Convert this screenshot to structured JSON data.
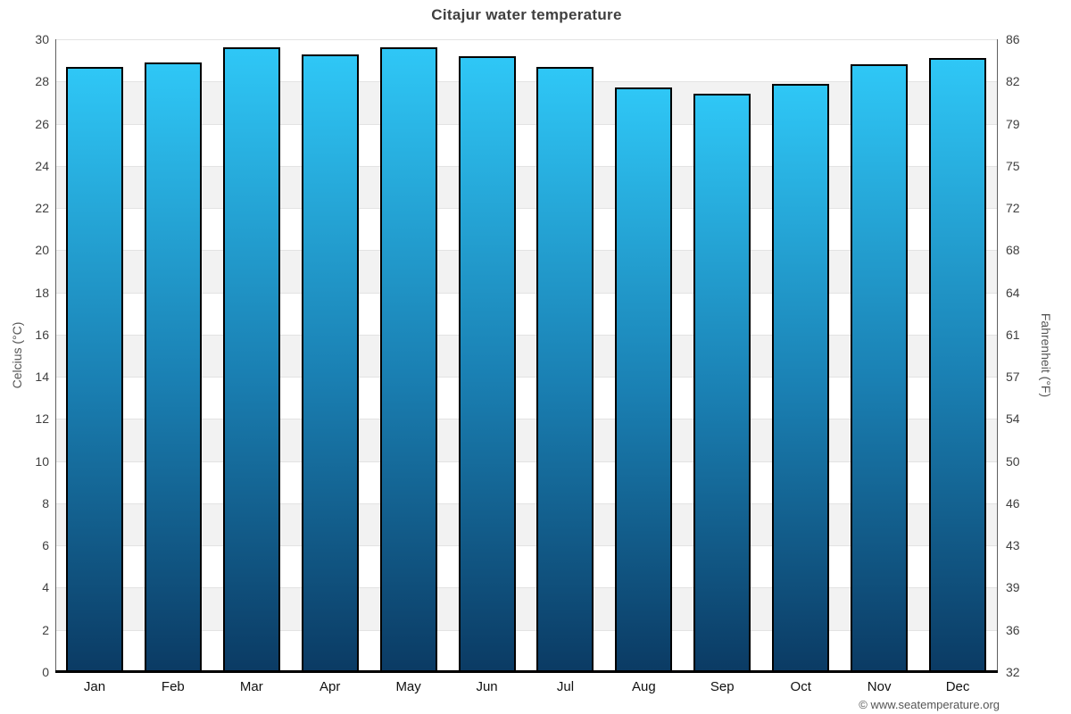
{
  "title": "Citajur water temperature",
  "footer": "© www.seatemperature.org",
  "chart_data": {
    "type": "bar",
    "title": "Citajur water temperature",
    "categories": [
      "Jan",
      "Feb",
      "Mar",
      "Apr",
      "May",
      "Jun",
      "Jul",
      "Aug",
      "Sep",
      "Oct",
      "Nov",
      "Dec"
    ],
    "values": [
      28.7,
      28.9,
      29.6,
      29.3,
      29.6,
      29.2,
      28.7,
      27.7,
      27.4,
      27.9,
      28.8,
      29.1
    ],
    "unit": "°C",
    "xlabel": "",
    "ylabel_left": "Celcius (°C)",
    "ylabel_right": "Fahrenheit (°F)",
    "ylim": [
      0,
      30
    ],
    "ytick_step": 2,
    "yticks_celsius": [
      "0",
      "2",
      "4",
      "6",
      "8",
      "10",
      "12",
      "14",
      "16",
      "18",
      "20",
      "22",
      "24",
      "26",
      "28",
      "30"
    ],
    "yticks_fahrenheit": [
      "32",
      "36",
      "39",
      "43",
      "46",
      "50",
      "54",
      "57",
      "61",
      "64",
      "68",
      "72",
      "75",
      "79",
      "82",
      "86"
    ],
    "legend": "none",
    "grid": "alternating horizontal bands every 2°C",
    "colors": {
      "bar_gradient_top": "#2fc7f6",
      "bar_gradient_mid": "#1a80b3",
      "bar_gradient_bottom": "#0b3b64",
      "bar_border": "#000000",
      "band_gray": "#f2f2f2",
      "band_white": "#ffffff",
      "gridline": "#e3e3e3",
      "baseline": "#000000",
      "title_text": "#3f3f3f",
      "tick_text": "#404040",
      "axis_title_text": "#555555"
    }
  }
}
